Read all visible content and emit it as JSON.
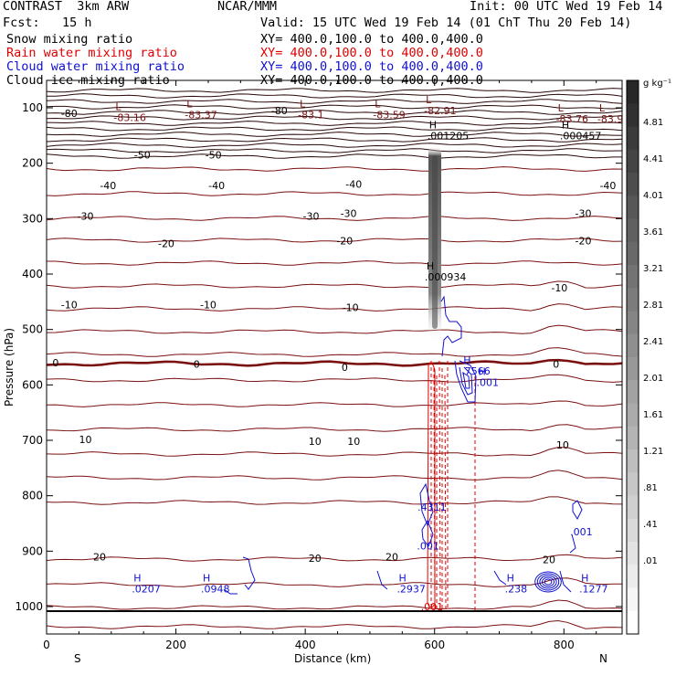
{
  "header": {
    "experiment": "CONTRAST  3km ARW",
    "org": "NCAR/MMM",
    "init": "Init: 00 UTC Wed 19 Feb 14",
    "fcst": "Fcst:   15 h",
    "valid": "Valid: 15 UTC Wed 19 Feb 14 (01 ChT Thu 20 Feb 14)",
    "fields": [
      {
        "name": "Snow mixing ratio",
        "xy": "XY= 400.0,100.0 to 400.0,400.0",
        "color": "#000000"
      },
      {
        "name": "Rain water mixing ratio",
        "xy": "XY= 400.0,100.0 to 400.0,400.0",
        "color": "#e00000"
      },
      {
        "name": "Cloud water mixing ratio",
        "xy": "XY= 400.0,100.0 to 400.0,400.0",
        "color": "#1010d0"
      },
      {
        "name": "Cloud ice mixing ratio",
        "xy": "XY= 400.0,100.0 to 400.0,400.0",
        "color": "#000000"
      }
    ]
  },
  "chart_data": {
    "type": "cross-section",
    "xlabel": "Distance (km)",
    "ylabel": "Pressure (hPa)",
    "xlim": [
      0,
      890
    ],
    "ylim": [
      1040,
      70
    ],
    "xticks": [
      0,
      200,
      400,
      600,
      800
    ],
    "yticks": [
      100,
      200,
      300,
      400,
      500,
      600,
      700,
      800,
      900,
      1000
    ],
    "x_end_labels": {
      "left": "S",
      "right": "N"
    },
    "colorbar": {
      "unit": "g kg⁻¹",
      "ticks": [
        "4.81",
        "4.41",
        "4.01",
        "3.61",
        "3.21",
        "2.81",
        "2.41",
        "2.01",
        "1.61",
        "1.21",
        ".81",
        ".41",
        ".01"
      ]
    },
    "temperature_labels": [
      {
        "text": "-80",
        "x": 35,
        "p": 110
      },
      {
        "text": "-80",
        "x": 360,
        "p": 105
      },
      {
        "text": "-50",
        "x": 148,
        "p": 185
      },
      {
        "text": "-50",
        "x": 258,
        "p": 185
      },
      {
        "text": "-40",
        "x": 95,
        "p": 240
      },
      {
        "text": "-40",
        "x": 263,
        "p": 240
      },
      {
        "text": "-40",
        "x": 475,
        "p": 238
      },
      {
        "text": "-40",
        "x": 868,
        "p": 240
      },
      {
        "text": "-30",
        "x": 60,
        "p": 295
      },
      {
        "text": "-30",
        "x": 409,
        "p": 295
      },
      {
        "text": "-30",
        "x": 467,
        "p": 290
      },
      {
        "text": "-30",
        "x": 830,
        "p": 290
      },
      {
        "text": "-20",
        "x": 185,
        "p": 345
      },
      {
        "text": "-20",
        "x": 461,
        "p": 340
      },
      {
        "text": "-20",
        "x": 830,
        "p": 340
      },
      {
        "text": "-10",
        "x": 35,
        "p": 455
      },
      {
        "text": "-10",
        "x": 250,
        "p": 455
      },
      {
        "text": "-10",
        "x": 470,
        "p": 460
      },
      {
        "text": "-10",
        "x": 793,
        "p": 425
      },
      {
        "text": "0",
        "x": 14,
        "p": 560
      },
      {
        "text": "0",
        "x": 232,
        "p": 562
      },
      {
        "text": "0",
        "x": 461,
        "p": 568
      },
      {
        "text": "0",
        "x": 788,
        "p": 562
      },
      {
        "text": "10",
        "x": 60,
        "p": 698
      },
      {
        "text": "10",
        "x": 415,
        "p": 702
      },
      {
        "text": "10",
        "x": 475,
        "p": 702
      },
      {
        "text": "10",
        "x": 798,
        "p": 708
      },
      {
        "text": "20",
        "x": 82,
        "p": 910
      },
      {
        "text": "20",
        "x": 415,
        "p": 913
      },
      {
        "text": "20",
        "x": 534,
        "p": 910
      },
      {
        "text": "20",
        "x": 777,
        "p": 915
      }
    ],
    "extrema": [
      {
        "kind": "L",
        "text": "-83.16",
        "x": 115,
        "p": 117
      },
      {
        "kind": "L",
        "text": "-83.37",
        "x": 225,
        "p": 112
      },
      {
        "kind": "L",
        "text": "-83.1",
        "x": 400,
        "p": 112
      },
      {
        "kind": "L",
        "text": "-83.59",
        "x": 516,
        "p": 112
      },
      {
        "kind": "L",
        "text": "-82.91",
        "x": 595,
        "p": 105
      },
      {
        "kind": "L",
        "text": "-83.76",
        "x": 799,
        "p": 120
      },
      {
        "kind": "L",
        "text": "-83.9",
        "x": 863,
        "p": 120
      },
      {
        "kind": "H",
        "text": ".001205",
        "x": 600,
        "p": 150
      },
      {
        "kind": "H",
        "text": ".000457",
        "x": 805,
        "p": 150
      },
      {
        "kind": "H",
        "text": ".000934",
        "x": 596,
        "p": 405
      },
      {
        "kind": "H",
        "text": ".7566",
        "x": 653,
        "p": 575
      },
      {
        "kind": "H",
        "text": ".001",
        "x": 676,
        "p": 595
      },
      {
        "kind": "H",
        "text": ".0207",
        "x": 143,
        "p": 968
      },
      {
        "kind": "H",
        "text": ".0948",
        "x": 250,
        "p": 968
      },
      {
        "kind": "H",
        "text": ".2937",
        "x": 553,
        "p": 968
      },
      {
        "kind": "H",
        "text": ".238",
        "x": 720,
        "p": 968
      },
      {
        "kind": "H",
        "text": ".1277",
        "x": 835,
        "p": 968
      }
    ],
    "plain_labels": [
      {
        "text": ".4311",
        "x": 596,
        "p": 820,
        "color": "#1010d0"
      },
      {
        "text": ".001",
        "x": 590,
        "p": 890,
        "color": "#1010d0"
      },
      {
        "text": ".001",
        "x": 827,
        "p": 865,
        "color": "#1010d0"
      },
      {
        "text": ".001",
        "x": 596,
        "p": 1000,
        "color": "#e00000"
      }
    ]
  }
}
